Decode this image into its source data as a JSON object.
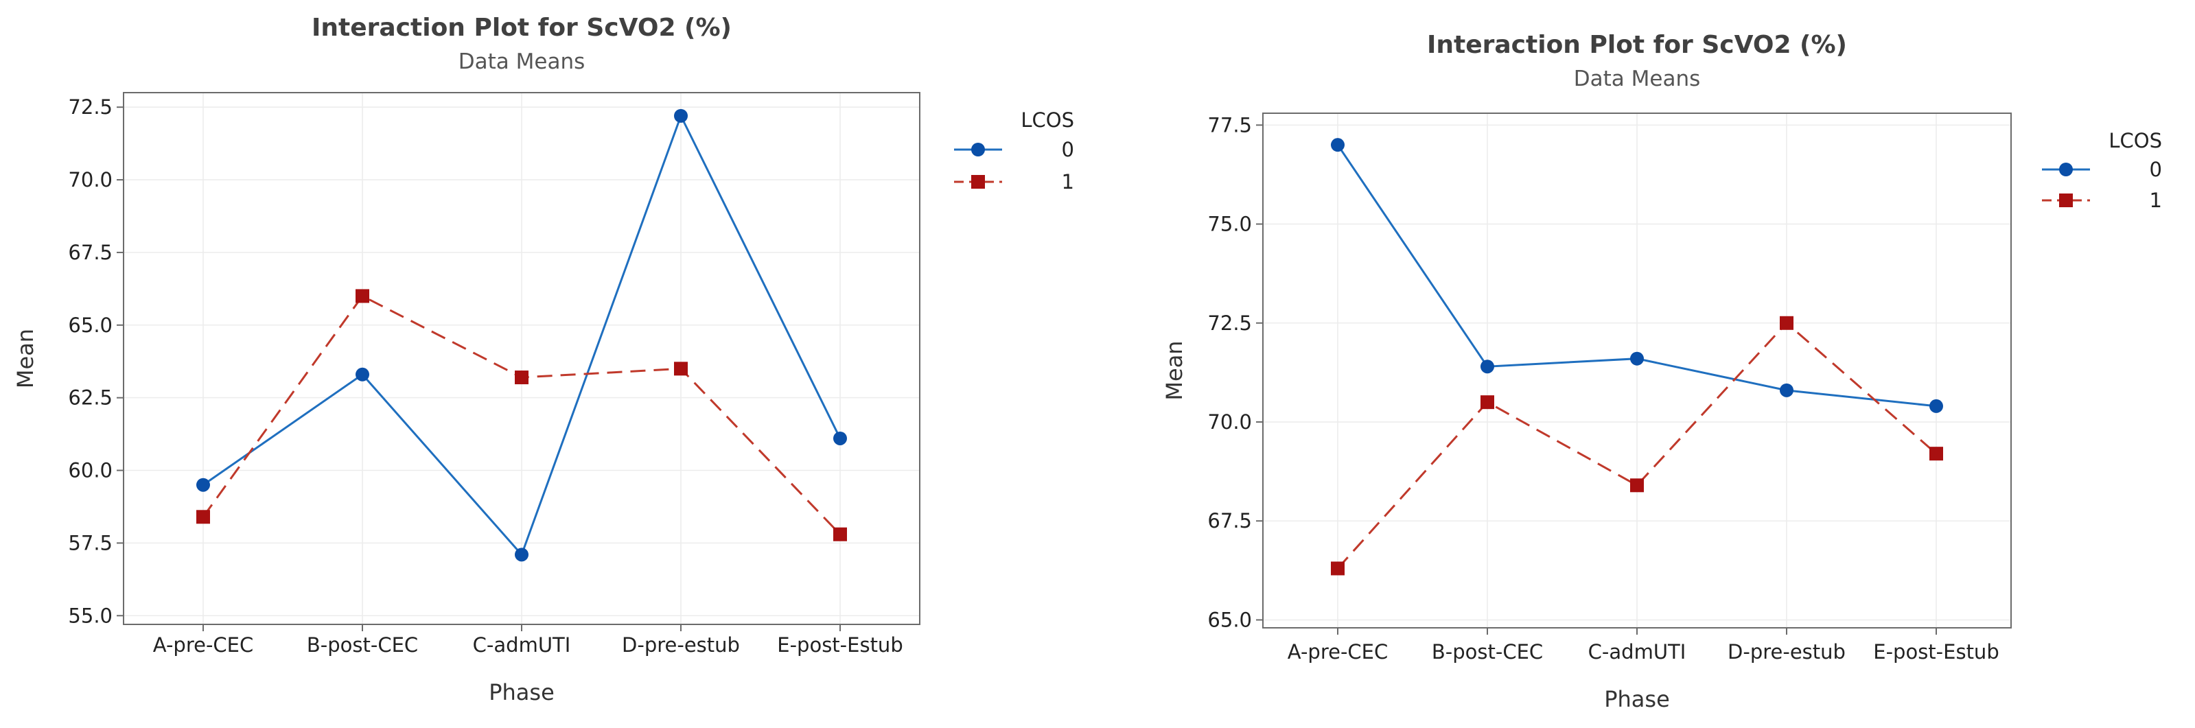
{
  "chart_data": [
    {
      "type": "line",
      "title": "Interaction Plot for ScVO2 (%)",
      "subtitle": "Data Means",
      "xlabel": "Phase",
      "ylabel": "Mean",
      "categories": [
        "A-pre-CEC",
        "B-post-CEC",
        "C-admUTI",
        "D-pre-estub",
        "E-post-Estub"
      ],
      "ylim": [
        54.7,
        73.0
      ],
      "yticks": [
        55.0,
        57.5,
        60.0,
        62.5,
        65.0,
        67.5,
        70.0,
        72.5
      ],
      "ytick_labels": [
        "55.0",
        "57.5",
        "60.0",
        "62.5",
        "65.0",
        "67.5",
        "70.0",
        "72.5"
      ],
      "grid": true,
      "legend": {
        "title": "LCOS",
        "position": "right",
        "entries": [
          "0",
          "1"
        ]
      },
      "series": [
        {
          "name": "0",
          "values": [
            59.5,
            63.3,
            57.1,
            72.2,
            61.1
          ],
          "color": "#1f6fbf",
          "marker_color": "#0a4fa8",
          "marker": "circle",
          "dash": "solid"
        },
        {
          "name": "1",
          "values": [
            58.4,
            66.0,
            63.2,
            63.5,
            57.8
          ],
          "color": "#c0392b",
          "marker_color": "#a81010",
          "marker": "square",
          "dash": "dashed"
        }
      ]
    },
    {
      "type": "line",
      "title": "Interaction Plot for ScVO2 (%)",
      "subtitle": "Data Means",
      "xlabel": "Phase",
      "ylabel": "Mean",
      "categories": [
        "A-pre-CEC",
        "B-post-CEC",
        "C-admUTI",
        "D-pre-estub",
        "E-post-Estub"
      ],
      "ylim": [
        64.8,
        77.8
      ],
      "yticks": [
        65.0,
        67.5,
        70.0,
        72.5,
        75.0,
        77.5
      ],
      "ytick_labels": [
        "65.0",
        "67.5",
        "70.0",
        "72.5",
        "75.0",
        "77.5"
      ],
      "grid": true,
      "legend": {
        "title": "LCOS",
        "position": "right",
        "entries": [
          "0",
          "1"
        ]
      },
      "series": [
        {
          "name": "0",
          "values": [
            77.0,
            71.4,
            71.6,
            70.8,
            70.4
          ],
          "color": "#1f6fbf",
          "marker_color": "#0a4fa8",
          "marker": "circle",
          "dash": "solid"
        },
        {
          "name": "1",
          "values": [
            66.3,
            70.5,
            68.4,
            72.5,
            69.2
          ],
          "color": "#c0392b",
          "marker_color": "#a81010",
          "marker": "square",
          "dash": "dashed"
        }
      ]
    }
  ]
}
